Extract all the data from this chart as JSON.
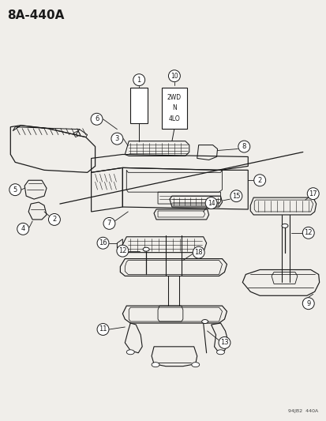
{
  "title": "8A-440A",
  "subtitle": "94JB2  440A",
  "bg_color": "#f0eeea",
  "line_color": "#1a1a1a",
  "label_box_text": "2WD\nN\n4LO",
  "figsize": [
    4.14,
    5.33
  ],
  "dpi": 100
}
